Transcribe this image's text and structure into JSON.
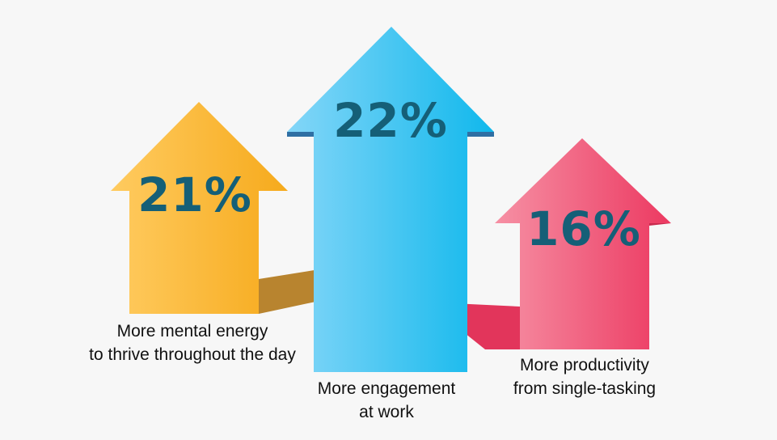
{
  "colors": {
    "background": "#f7f7f7",
    "number_text": "#155f77",
    "yellow_light": "#ffc95a",
    "yellow_dark": "#f6a91a",
    "yellow_shadow": "#b8842f",
    "blue_light": "#7fd3f7",
    "blue_dark": "#11b9ec",
    "blue_edge": "#2f73a6",
    "pink_light": "#f58aa0",
    "pink_dark": "#ec3a62",
    "pink_shadow": "#e2355b"
  },
  "stats": [
    {
      "id": "energy",
      "value": "21%",
      "caption_lines": [
        "More mental energy",
        "to thrive throughout the day"
      ],
      "color": "yellow"
    },
    {
      "id": "engagement",
      "value": "22%",
      "caption_lines": [
        "More engagement",
        "at work"
      ],
      "color": "blue"
    },
    {
      "id": "productivity",
      "value": "16%",
      "caption_lines": [
        "More productivity",
        "from single-tasking"
      ],
      "color": "pink"
    }
  ]
}
